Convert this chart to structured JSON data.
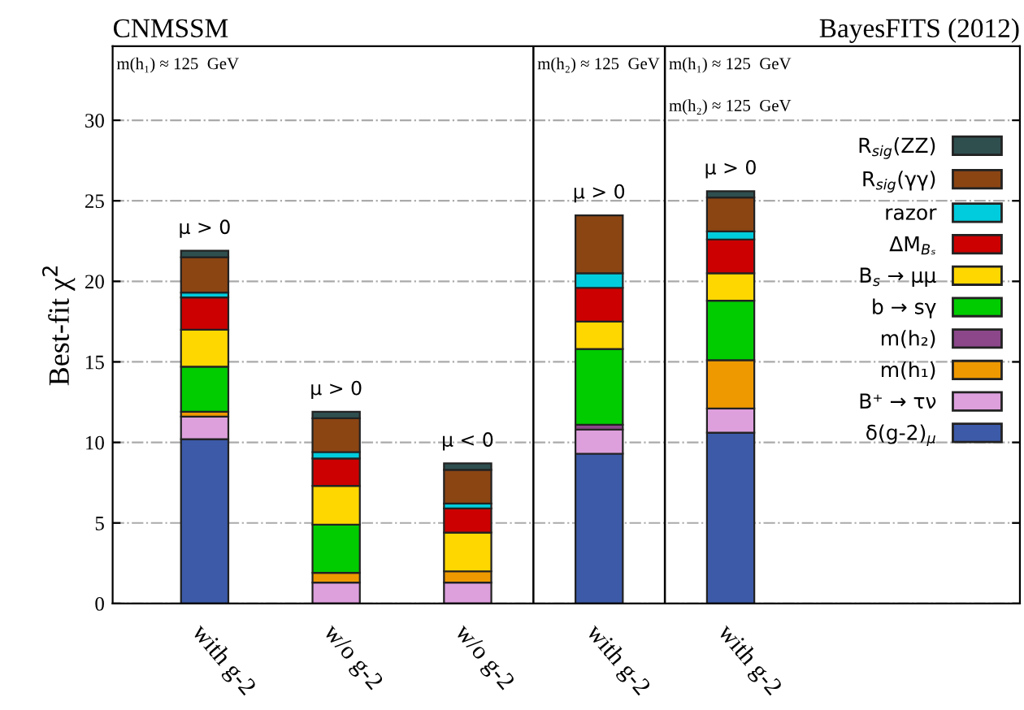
{
  "chart_data": {
    "type": "bar",
    "stacked": true,
    "title": "CNMSSM",
    "subtitle": "BayesFITS (2012)",
    "ylabel": "Best-fit χ$^{2}$",
    "categories": [
      "with g-2",
      "w/o g-2",
      "w/o g-2",
      "with g-2",
      "with g-2"
    ],
    "series": [
      {
        "name": "δ(g-2)$_{μ}$",
        "color": "#3c5aa8",
        "values": [
          10.2,
          0,
          0,
          9.3,
          10.6
        ]
      },
      {
        "name": "B⁺ → τν",
        "color": "#dda0dd",
        "values": [
          1.4,
          1.3,
          1.3,
          1.5,
          1.5
        ]
      },
      {
        "name": "m(h₁)",
        "color": "#ee9900",
        "values": [
          0.3,
          0.6,
          0.7,
          0,
          3
        ]
      },
      {
        "name": "m(h₂)",
        "color": "#8b4789",
        "values": [
          0,
          0,
          0,
          0.3,
          0
        ]
      },
      {
        "name": "b → sγ",
        "color": "#00cc00",
        "values": [
          2.8,
          3,
          0,
          4.7,
          3.7
        ]
      },
      {
        "name": "B$_{s}$ → μμ",
        "color": "#ffd700",
        "values": [
          2.3,
          2.4,
          2.4,
          1.7,
          1.7
        ]
      },
      {
        "name": "ΔM$_{Bₛ}$",
        "color": "#cc0000",
        "values": [
          2,
          1.7,
          1.5,
          2.1,
          2.1
        ]
      },
      {
        "name": "razor",
        "color": "#00ccdd",
        "values": [
          0.3,
          0.4,
          0.3,
          0.9,
          0.5
        ]
      },
      {
        "name": "R$_{sig}$(γγ)",
        "color": "#8b4513",
        "values": [
          2.2,
          2.1,
          2.1,
          3.6,
          2.1
        ]
      },
      {
        "name": "R$_{sig}$(ZZ)",
        "color": "#2f4f4f",
        "values": [
          0.4,
          0.4,
          0.4,
          0,
          0.4
        ]
      }
    ],
    "ylim": [
      0,
      34.6
    ],
    "yticks": [
      0,
      5,
      10,
      15,
      20,
      25,
      30
    ],
    "grid": "y",
    "legend": "right",
    "annotations": [
      "μ > 0",
      "μ > 0",
      "μ < 0",
      "μ > 0",
      "μ > 0",
      "m(h₁) ≈ 125  GeV",
      "m(h₂) ≈ 125  GeV",
      "m(h₁) ≈ 125  GeV",
      "m(h₂) ≈ 125  GeV"
    ]
  }
}
